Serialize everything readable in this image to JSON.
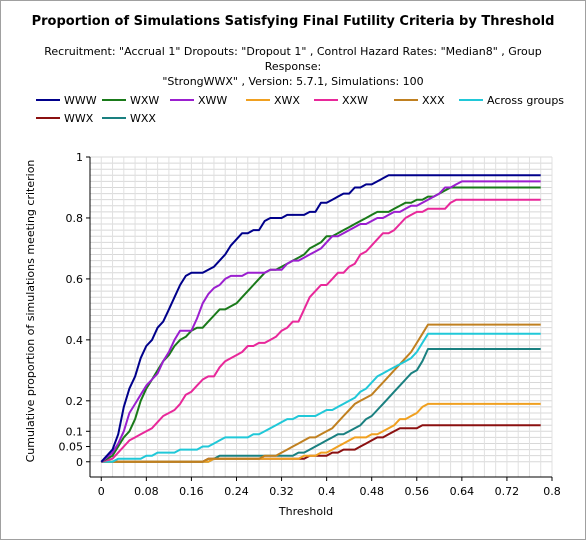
{
  "chart_data": {
    "type": "line",
    "title": "Proportion of Simulations Satisfying Final Futility Criteria by Threshold",
    "subtitle": [
      "Recruitment: \"Accrual 1\" Dropouts: \"Dropout 1\" , Control Hazard Rates: \"Median8\" , Group Response:",
      "\"StrongWWX\" , Version: 5.7.1, Simulations: 100"
    ],
    "xlabel": "Threshold",
    "ylabel": "Cumulative proportion of simulations meeting criterion",
    "xlim": [
      -0.02,
      0.8
    ],
    "ylim": [
      -0.05,
      1
    ],
    "xticks": [
      0,
      0.08,
      0.16,
      0.24,
      0.32,
      0.4,
      0.48,
      0.56,
      0.64,
      0.72,
      0.8
    ],
    "xtick_labels": [
      "0",
      "0.08",
      "0.16",
      "0.24",
      "0.32",
      "0.4",
      "0.48",
      "0.56",
      "0.64",
      "0.72",
      "0.8"
    ],
    "yticks": [
      0,
      0.05,
      0.1,
      0.2,
      0.4,
      0.6,
      0.8,
      1
    ],
    "ytick_labels": [
      "0",
      "0.05",
      "0.1",
      "0.2",
      "0.4",
      "0.6",
      "0.8",
      "1"
    ],
    "grid": true,
    "legend_position": "top",
    "x": [
      0,
      0.02,
      0.03,
      0.04,
      0.05,
      0.06,
      0.07,
      0.08,
      0.09,
      0.1,
      0.11,
      0.12,
      0.13,
      0.14,
      0.15,
      0.16,
      0.17,
      0.18,
      0.19,
      0.2,
      0.21,
      0.22,
      0.23,
      0.24,
      0.25,
      0.26,
      0.27,
      0.28,
      0.29,
      0.3,
      0.31,
      0.32,
      0.33,
      0.34,
      0.35,
      0.36,
      0.37,
      0.38,
      0.39,
      0.4,
      0.41,
      0.42,
      0.43,
      0.44,
      0.45,
      0.46,
      0.47,
      0.48,
      0.49,
      0.5,
      0.51,
      0.52,
      0.53,
      0.54,
      0.55,
      0.56,
      0.57,
      0.58,
      0.59,
      0.6,
      0.61,
      0.62,
      0.63,
      0.64,
      0.65,
      0.66,
      0.67,
      0.68,
      0.69,
      0.7,
      0.71,
      0.72,
      0.73,
      0.74,
      0.75,
      0.76,
      0.77,
      0.78
    ],
    "series": [
      {
        "name": "WWW",
        "color": "#00008b",
        "values": [
          0,
          0.04,
          0.09,
          0.18,
          0.24,
          0.28,
          0.34,
          0.38,
          0.4,
          0.44,
          0.46,
          0.5,
          0.54,
          0.58,
          0.61,
          0.62,
          0.62,
          0.62,
          0.63,
          0.64,
          0.66,
          0.68,
          0.71,
          0.73,
          0.75,
          0.75,
          0.76,
          0.76,
          0.79,
          0.8,
          0.8,
          0.8,
          0.81,
          0.81,
          0.81,
          0.81,
          0.82,
          0.82,
          0.85,
          0.85,
          0.86,
          0.87,
          0.88,
          0.88,
          0.9,
          0.9,
          0.91,
          0.91,
          0.92,
          0.93,
          0.94,
          0.94,
          0.94,
          0.94,
          0.94,
          0.94,
          0.94,
          0.94,
          0.94,
          0.94,
          0.94,
          0.94,
          0.94,
          0.94,
          0.94,
          0.94,
          0.94,
          0.94,
          0.94,
          0.94,
          0.94,
          0.94,
          0.94,
          0.94,
          0.94,
          0.94,
          0.94,
          0.94
        ]
      },
      {
        "name": "WXW",
        "color": "#1a7a1a",
        "values": [
          0,
          0.02,
          0.05,
          0.08,
          0.1,
          0.14,
          0.2,
          0.24,
          0.27,
          0.3,
          0.33,
          0.35,
          0.38,
          0.4,
          0.41,
          0.43,
          0.44,
          0.44,
          0.46,
          0.48,
          0.5,
          0.5,
          0.51,
          0.52,
          0.54,
          0.56,
          0.58,
          0.6,
          0.62,
          0.63,
          0.63,
          0.64,
          0.65,
          0.66,
          0.67,
          0.68,
          0.7,
          0.71,
          0.72,
          0.74,
          0.74,
          0.75,
          0.76,
          0.77,
          0.78,
          0.79,
          0.8,
          0.81,
          0.82,
          0.82,
          0.82,
          0.83,
          0.84,
          0.85,
          0.85,
          0.86,
          0.86,
          0.87,
          0.87,
          0.88,
          0.89,
          0.9,
          0.9,
          0.9,
          0.9,
          0.9,
          0.9,
          0.9,
          0.9,
          0.9,
          0.9,
          0.9,
          0.9,
          0.9,
          0.9,
          0.9,
          0.9,
          0.9
        ]
      },
      {
        "name": "XWW",
        "color": "#9b1fcf",
        "values": [
          0,
          0.03,
          0.06,
          0.1,
          0.16,
          0.19,
          0.22,
          0.25,
          0.27,
          0.29,
          0.33,
          0.36,
          0.4,
          0.43,
          0.43,
          0.43,
          0.47,
          0.52,
          0.55,
          0.57,
          0.58,
          0.6,
          0.61,
          0.61,
          0.61,
          0.62,
          0.62,
          0.62,
          0.62,
          0.63,
          0.63,
          0.63,
          0.65,
          0.66,
          0.66,
          0.67,
          0.68,
          0.69,
          0.7,
          0.72,
          0.74,
          0.74,
          0.75,
          0.76,
          0.77,
          0.78,
          0.78,
          0.79,
          0.8,
          0.8,
          0.81,
          0.82,
          0.82,
          0.83,
          0.84,
          0.84,
          0.85,
          0.86,
          0.87,
          0.88,
          0.9,
          0.9,
          0.91,
          0.92,
          0.92,
          0.92,
          0.92,
          0.92,
          0.92,
          0.92,
          0.92,
          0.92,
          0.92,
          0.92,
          0.92,
          0.92,
          0.92,
          0.92
        ]
      },
      {
        "name": "XWX",
        "color": "#f0a020",
        "values": [
          0,
          0,
          0,
          0,
          0,
          0,
          0,
          0,
          0,
          0,
          0,
          0,
          0,
          0,
          0,
          0,
          0,
          0,
          0,
          0.01,
          0.01,
          0.01,
          0.01,
          0.01,
          0.01,
          0.01,
          0.01,
          0.01,
          0.01,
          0.01,
          0.01,
          0.01,
          0.01,
          0.01,
          0.01,
          0.02,
          0.02,
          0.02,
          0.03,
          0.03,
          0.04,
          0.05,
          0.06,
          0.07,
          0.08,
          0.08,
          0.08,
          0.09,
          0.09,
          0.1,
          0.11,
          0.12,
          0.14,
          0.14,
          0.15,
          0.16,
          0.18,
          0.19,
          0.19,
          0.19,
          0.19,
          0.19,
          0.19,
          0.19,
          0.19,
          0.19,
          0.19,
          0.19,
          0.19,
          0.19,
          0.19,
          0.19,
          0.19,
          0.19,
          0.19,
          0.19,
          0.19,
          0.19
        ]
      },
      {
        "name": "XXW",
        "color": "#e8289a",
        "values": [
          0,
          0.01,
          0.03,
          0.05,
          0.07,
          0.08,
          0.09,
          0.1,
          0.11,
          0.13,
          0.15,
          0.16,
          0.17,
          0.19,
          0.22,
          0.23,
          0.25,
          0.27,
          0.28,
          0.28,
          0.31,
          0.33,
          0.34,
          0.35,
          0.36,
          0.38,
          0.38,
          0.39,
          0.39,
          0.4,
          0.41,
          0.43,
          0.44,
          0.46,
          0.46,
          0.5,
          0.54,
          0.56,
          0.58,
          0.58,
          0.6,
          0.62,
          0.62,
          0.64,
          0.65,
          0.68,
          0.69,
          0.71,
          0.73,
          0.75,
          0.75,
          0.76,
          0.78,
          0.8,
          0.81,
          0.82,
          0.82,
          0.83,
          0.83,
          0.83,
          0.83,
          0.85,
          0.86,
          0.86,
          0.86,
          0.86,
          0.86,
          0.86,
          0.86,
          0.86,
          0.86,
          0.86,
          0.86,
          0.86,
          0.86,
          0.86,
          0.86,
          0.86
        ]
      },
      {
        "name": "XXX",
        "color": "#c08020",
        "values": [
          0,
          0,
          0,
          0,
          0,
          0,
          0,
          0,
          0,
          0,
          0,
          0,
          0,
          0,
          0,
          0,
          0,
          0,
          0.01,
          0.01,
          0.01,
          0.01,
          0.01,
          0.01,
          0.01,
          0.01,
          0.01,
          0.01,
          0.02,
          0.02,
          0.02,
          0.03,
          0.04,
          0.05,
          0.06,
          0.07,
          0.08,
          0.08,
          0.09,
          0.1,
          0.11,
          0.13,
          0.15,
          0.17,
          0.19,
          0.2,
          0.21,
          0.22,
          0.24,
          0.26,
          0.28,
          0.3,
          0.32,
          0.34,
          0.36,
          0.39,
          0.42,
          0.45,
          0.45,
          0.45,
          0.45,
          0.45,
          0.45,
          0.45,
          0.45,
          0.45,
          0.45,
          0.45,
          0.45,
          0.45,
          0.45,
          0.45,
          0.45,
          0.45,
          0.45,
          0.45,
          0.45,
          0.45
        ]
      },
      {
        "name": "Across groups",
        "color": "#20c8d8",
        "values": [
          0,
          0,
          0.01,
          0.01,
          0.01,
          0.01,
          0.01,
          0.02,
          0.02,
          0.03,
          0.03,
          0.03,
          0.03,
          0.04,
          0.04,
          0.04,
          0.04,
          0.05,
          0.05,
          0.06,
          0.07,
          0.08,
          0.08,
          0.08,
          0.08,
          0.08,
          0.09,
          0.09,
          0.1,
          0.11,
          0.12,
          0.13,
          0.14,
          0.14,
          0.15,
          0.15,
          0.15,
          0.15,
          0.16,
          0.17,
          0.17,
          0.18,
          0.19,
          0.2,
          0.21,
          0.23,
          0.24,
          0.26,
          0.28,
          0.29,
          0.3,
          0.31,
          0.32,
          0.33,
          0.34,
          0.36,
          0.39,
          0.42,
          0.42,
          0.42,
          0.42,
          0.42,
          0.42,
          0.42,
          0.42,
          0.42,
          0.42,
          0.42,
          0.42,
          0.42,
          0.42,
          0.42,
          0.42,
          0.42,
          0.42,
          0.42,
          0.42,
          0.42
        ]
      },
      {
        "name": "WWX",
        "color": "#8b1010",
        "values": [
          0,
          0,
          0,
          0,
          0,
          0,
          0,
          0,
          0,
          0,
          0,
          0,
          0,
          0,
          0,
          0,
          0,
          0,
          0.01,
          0.01,
          0.01,
          0.01,
          0.01,
          0.01,
          0.01,
          0.01,
          0.01,
          0.01,
          0.01,
          0.01,
          0.01,
          0.01,
          0.01,
          0.01,
          0.01,
          0.01,
          0.02,
          0.02,
          0.02,
          0.02,
          0.03,
          0.03,
          0.04,
          0.04,
          0.04,
          0.05,
          0.06,
          0.07,
          0.08,
          0.08,
          0.09,
          0.1,
          0.11,
          0.11,
          0.11,
          0.11,
          0.12,
          0.12,
          0.12,
          0.12,
          0.12,
          0.12,
          0.12,
          0.12,
          0.12,
          0.12,
          0.12,
          0.12,
          0.12,
          0.12,
          0.12,
          0.12,
          0.12,
          0.12,
          0.12,
          0.12,
          0.12,
          0.12
        ]
      },
      {
        "name": "WXX",
        "color": "#1a8080",
        "values": [
          0,
          0,
          0,
          0,
          0,
          0,
          0,
          0,
          0,
          0,
          0,
          0,
          0,
          0,
          0,
          0,
          0,
          0,
          0,
          0.01,
          0.02,
          0.02,
          0.02,
          0.02,
          0.02,
          0.02,
          0.02,
          0.02,
          0.02,
          0.02,
          0.02,
          0.02,
          0.02,
          0.02,
          0.03,
          0.03,
          0.04,
          0.05,
          0.06,
          0.07,
          0.08,
          0.09,
          0.09,
          0.1,
          0.11,
          0.12,
          0.14,
          0.15,
          0.17,
          0.19,
          0.21,
          0.23,
          0.25,
          0.27,
          0.29,
          0.3,
          0.33,
          0.37,
          0.37,
          0.37,
          0.37,
          0.37,
          0.37,
          0.37,
          0.37,
          0.37,
          0.37,
          0.37,
          0.37,
          0.37,
          0.37,
          0.37,
          0.37,
          0.37,
          0.37,
          0.37,
          0.37,
          0.37
        ]
      }
    ]
  }
}
